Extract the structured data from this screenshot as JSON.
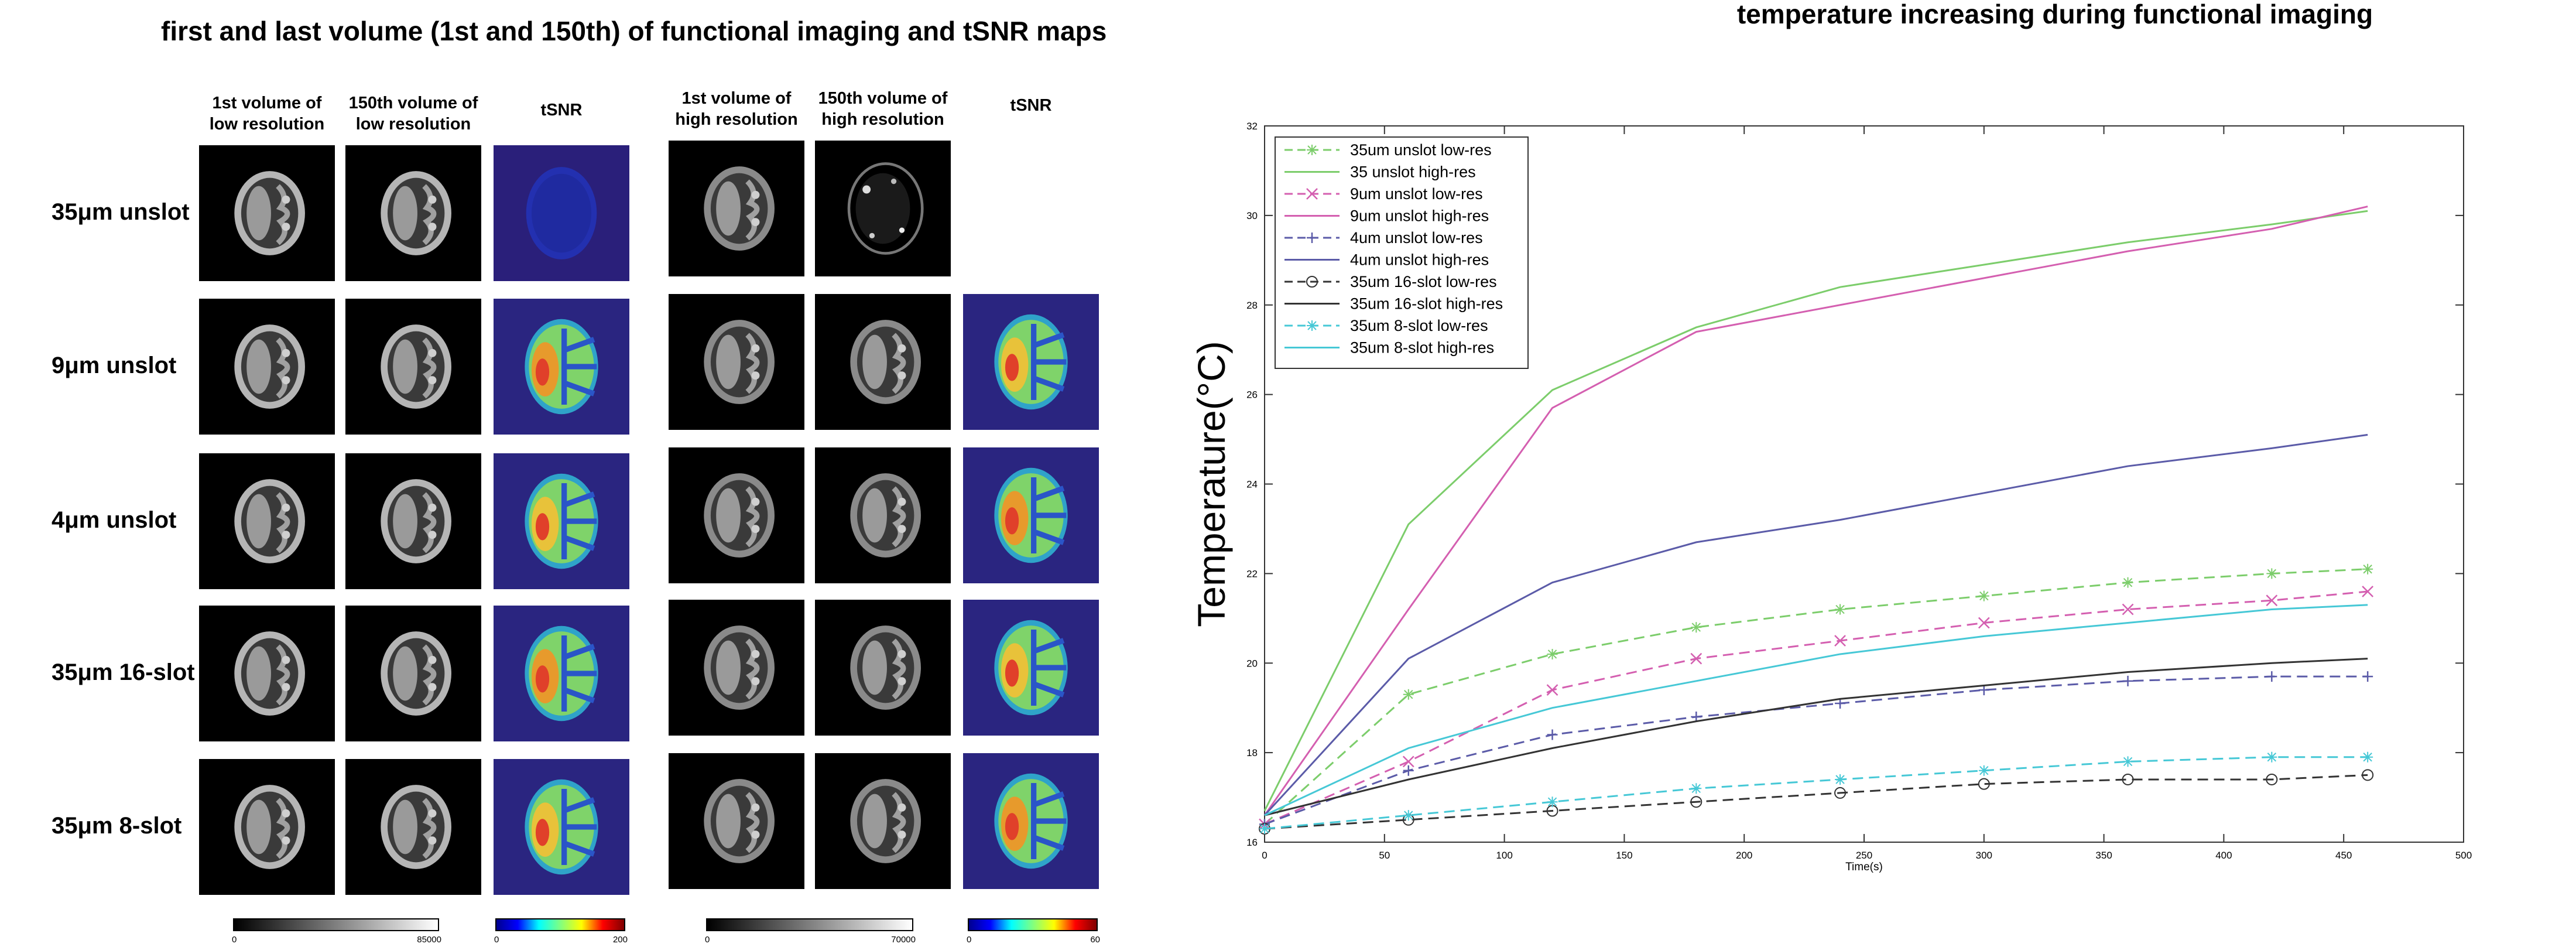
{
  "left_panel": {
    "title": "first and last volume (1st and 150th) of functional imaging and tSNR maps",
    "column_headers": [
      "1st volume of\nlow resolution",
      "150th volume of\nlow resolution",
      "tSNR",
      "1st volume of\nhigh resolution",
      "150th volume of\nhigh resolution",
      "tSNR"
    ],
    "rows": [
      "35μm unslot",
      "9μm unslot",
      "4μm unslot",
      "35μm 16-slot",
      "35μm 8-slot"
    ],
    "colorbars": [
      {
        "type": "gray",
        "min": "0",
        "max": "85000"
      },
      {
        "type": "jet",
        "min": "0",
        "max": "200"
      },
      {
        "type": "gray",
        "min": "0",
        "max": "70000"
      },
      {
        "type": "jet",
        "min": "0",
        "max": "60"
      }
    ]
  },
  "chart_data": {
    "type": "line",
    "title": "temperature increasing during functional imaging",
    "xlabel": "Time(s)",
    "ylabel": "Temperature(°C)",
    "xlim": [
      0,
      500
    ],
    "ylim": [
      16,
      32
    ],
    "xticks": [
      "0",
      "50",
      "100",
      "150",
      "200",
      "250",
      "300",
      "350",
      "400",
      "450",
      "500"
    ],
    "yticks": [
      "16",
      "18",
      "20",
      "22",
      "24",
      "26",
      "28",
      "30",
      "32"
    ],
    "legend_position": "top-left",
    "grid": false,
    "x": [
      0,
      60,
      120,
      180,
      240,
      300,
      360,
      420,
      460
    ],
    "series": [
      {
        "name": "35um unslot low-res",
        "color": "#7ccd6b",
        "dash": true,
        "marker": "asterisk",
        "values": [
          16.4,
          19.3,
          20.2,
          20.8,
          21.2,
          21.5,
          21.8,
          22.0,
          22.1
        ]
      },
      {
        "name": "35 unslot high-res",
        "color": "#7ccd6b",
        "dash": false,
        "marker": "none",
        "values": [
          16.7,
          23.1,
          26.1,
          27.5,
          28.4,
          28.9,
          29.4,
          29.8,
          30.1
        ]
      },
      {
        "name": "9um unslot low-res",
        "color": "#d45fb0",
        "dash": true,
        "marker": "x",
        "values": [
          16.4,
          17.8,
          19.4,
          20.1,
          20.5,
          20.9,
          21.2,
          21.4,
          21.6
        ]
      },
      {
        "name": "9um unslot high-res",
        "color": "#d45fb0",
        "dash": false,
        "marker": "none",
        "values": [
          16.6,
          21.2,
          25.7,
          27.4,
          28.0,
          28.6,
          29.2,
          29.7,
          30.2
        ]
      },
      {
        "name": "4um unslot low-res",
        "color": "#5b5ba8",
        "dash": true,
        "marker": "plus",
        "values": [
          16.4,
          17.6,
          18.4,
          18.8,
          19.1,
          19.4,
          19.6,
          19.7,
          19.7
        ]
      },
      {
        "name": "4um unslot high-res",
        "color": "#5b5ba8",
        "dash": false,
        "marker": "none",
        "values": [
          16.6,
          20.1,
          21.8,
          22.7,
          23.2,
          23.8,
          24.4,
          24.8,
          25.1
        ]
      },
      {
        "name": "35um 16-slot low-res",
        "color": "#333333",
        "dash": true,
        "marker": "circle",
        "values": [
          16.3,
          16.5,
          16.7,
          16.9,
          17.1,
          17.3,
          17.4,
          17.4,
          17.5
        ]
      },
      {
        "name": "35um 16-slot high-res",
        "color": "#333333",
        "dash": false,
        "marker": "none",
        "values": [
          16.6,
          17.4,
          18.1,
          18.7,
          19.2,
          19.5,
          19.8,
          20.0,
          20.1
        ]
      },
      {
        "name": "35um 8-slot low-res",
        "color": "#46c8d6",
        "dash": true,
        "marker": "asterisk",
        "values": [
          16.3,
          16.6,
          16.9,
          17.2,
          17.4,
          17.6,
          17.8,
          17.9,
          17.9
        ]
      },
      {
        "name": "35um 8-slot high-res",
        "color": "#46c8d6",
        "dash": false,
        "marker": "none",
        "values": [
          16.6,
          18.1,
          19.0,
          19.6,
          20.2,
          20.6,
          20.9,
          21.2,
          21.3
        ]
      }
    ]
  }
}
